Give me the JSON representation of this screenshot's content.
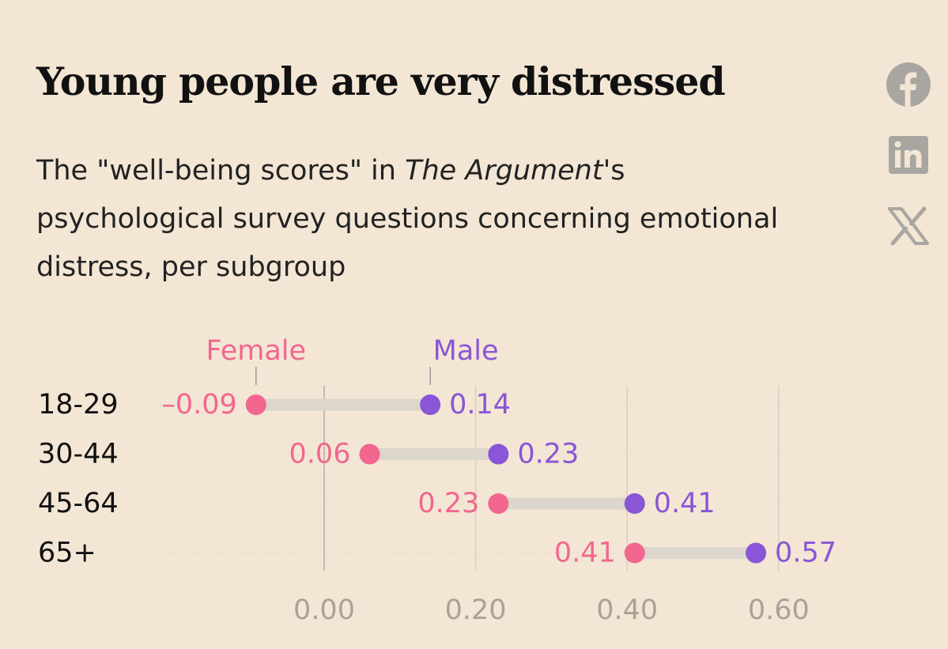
{
  "header": {
    "title": "Young people are very distressed",
    "subtitle_before": "The \"well-being scores\" in ",
    "subtitle_italic": "The Argument",
    "subtitle_after": "'s psychological survey questions concerning emotional distress, per subgroup"
  },
  "share": {
    "items": [
      {
        "name": "facebook",
        "icon": "facebook-icon"
      },
      {
        "name": "linkedin",
        "icon": "linkedin-icon"
      },
      {
        "name": "x",
        "icon": "x-icon"
      }
    ]
  },
  "colors": {
    "background": "#f3e6d4",
    "female": "#f2668f",
    "male": "#8a55d6",
    "connector": "#dcd6cc",
    "grid": "#d8d0c3",
    "zero_line": "#c2bcb2",
    "share_icon": "#a9a6a2"
  },
  "chart_data": {
    "type": "dumbbell",
    "title": "Young people are very distressed",
    "subtitle": "The \"well-being scores\" in The Argument's psychological survey questions concerning emotional distress, per subgroup",
    "categories": [
      "18-29",
      "30-44",
      "45-64",
      "65+"
    ],
    "series": [
      {
        "name": "Female",
        "values": [
          -0.09,
          0.06,
          0.23,
          0.41
        ],
        "labels": [
          "–0.09",
          "0.06",
          "0.23",
          "0.41"
        ]
      },
      {
        "name": "Male",
        "values": [
          0.14,
          0.23,
          0.41,
          0.57
        ],
        "labels": [
          "0.14",
          "0.23",
          "0.41",
          "0.57"
        ]
      }
    ],
    "xticks": [
      0.0,
      0.2,
      0.4,
      0.6
    ],
    "xtick_labels": [
      "0.00",
      "0.20",
      "0.40",
      "0.60"
    ],
    "xlim": [
      -0.14,
      0.63
    ],
    "xlabel": "",
    "ylabel": "",
    "grid": true,
    "legend": "direct labels above first row"
  }
}
